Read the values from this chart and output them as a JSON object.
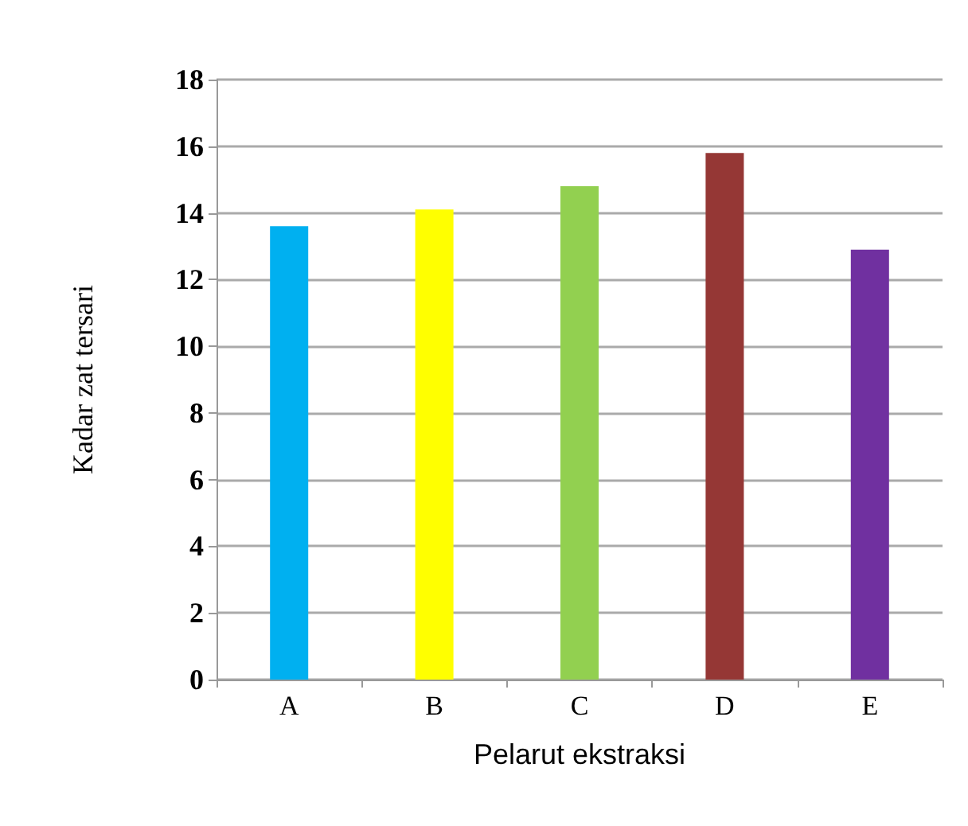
{
  "chart_data": {
    "type": "bar",
    "xlabel": "Pelarut ekstraksi",
    "ylabel": "Kadar zat tersari",
    "categories": [
      "A",
      "B",
      "C",
      "D",
      "E"
    ],
    "values": [
      13.6,
      14.1,
      14.8,
      15.8,
      12.9
    ],
    "colors": [
      "#00b0f0",
      "#ffff00",
      "#92d050",
      "#953735",
      "#7030a0"
    ],
    "ylim": [
      0,
      18
    ],
    "yticks": [
      0,
      2,
      4,
      6,
      8,
      10,
      12,
      14,
      16,
      18
    ],
    "grid": "y"
  }
}
